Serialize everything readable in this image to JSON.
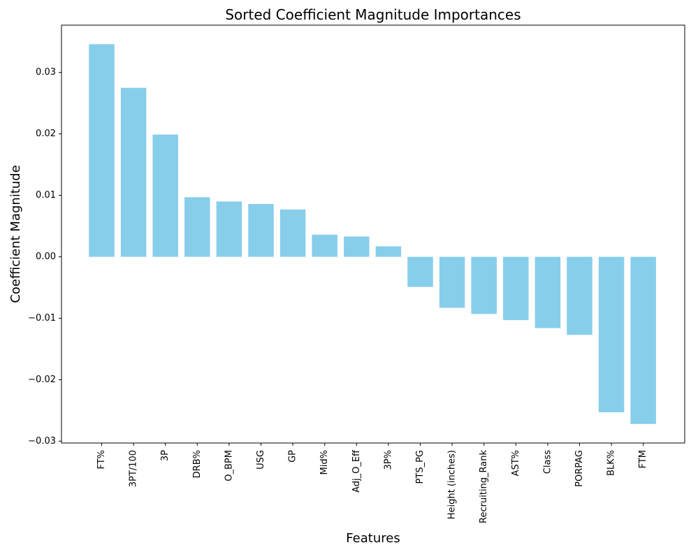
{
  "chart_data": {
    "type": "bar",
    "title": "Sorted Coefficient Magnitude Importances",
    "xlabel": "Features",
    "ylabel": "Coefficient Magnitude",
    "categories": [
      "FT%",
      "3PT/100",
      "3P",
      "DRB%",
      "O_BPM",
      "USG",
      "GP",
      "Mid%",
      "Adj_O_Eff",
      "3P%",
      "PTS_PG",
      "Height (inches)",
      "Recruiting_Rank",
      "AST%",
      "Class",
      "PORPAG",
      "BLK%",
      "FTM"
    ],
    "values": [
      0.0346,
      0.0275,
      0.0199,
      0.0097,
      0.009,
      0.0086,
      0.0077,
      0.0036,
      0.0033,
      0.0017,
      -0.0049,
      -0.0083,
      -0.0093,
      -0.0103,
      -0.0116,
      -0.0127,
      -0.0253,
      -0.0272
    ],
    "yticks": [
      0.03,
      0.02,
      0.01,
      0.0,
      -0.01,
      -0.02,
      -0.03
    ],
    "ytick_labels": [
      "0.03",
      "0.02",
      "0.01",
      "0.00",
      "−0.01",
      "−0.02",
      "−0.03"
    ],
    "ylim": [
      -0.0303,
      0.0377
    ],
    "bar_color": "#87CEEB",
    "grid": false,
    "legend": "none"
  }
}
